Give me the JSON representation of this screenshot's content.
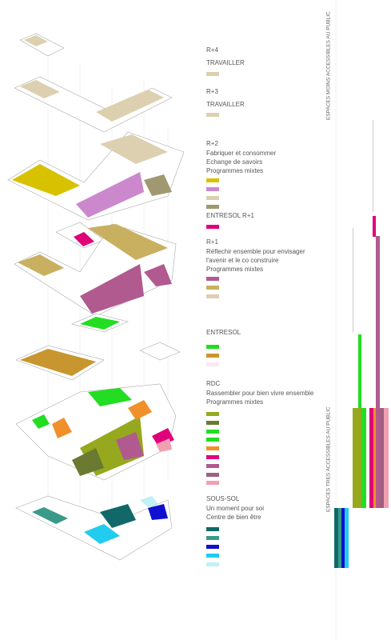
{
  "levels": [
    {
      "name": "R+4",
      "lines": [
        "TRAVAILLER"
      ]
    },
    {
      "name": "R+3",
      "lines": [
        "TRAVAILLER"
      ]
    },
    {
      "name": "R+2",
      "lines": [
        "Fabriquer et consommer",
        "Echange de savoirs",
        "Programmes mixtes"
      ]
    },
    {
      "name": "ENTRESOL R+1",
      "lines": []
    },
    {
      "name": "R+1",
      "lines": [
        "Réflechir ensemble pour envisager",
        "l'avenir et le co construire",
        "Programmes mixtes"
      ]
    },
    {
      "name": "ENTRESOL",
      "lines": []
    },
    {
      "name": "RDC",
      "lines": [
        "Rassembler pour bien vivre ensemble",
        "Programmes mixtes"
      ]
    },
    {
      "name": "SOUS-SOL",
      "lines": [
        "Un moment pour soi",
        "Centre de bien être"
      ]
    }
  ],
  "side_labels": [
    "ESPACES MOINS ACCESSIBLES AU PUBLIC",
    "ESPACES TRES ACCESSIBLES AU PUBLIC"
  ]
}
